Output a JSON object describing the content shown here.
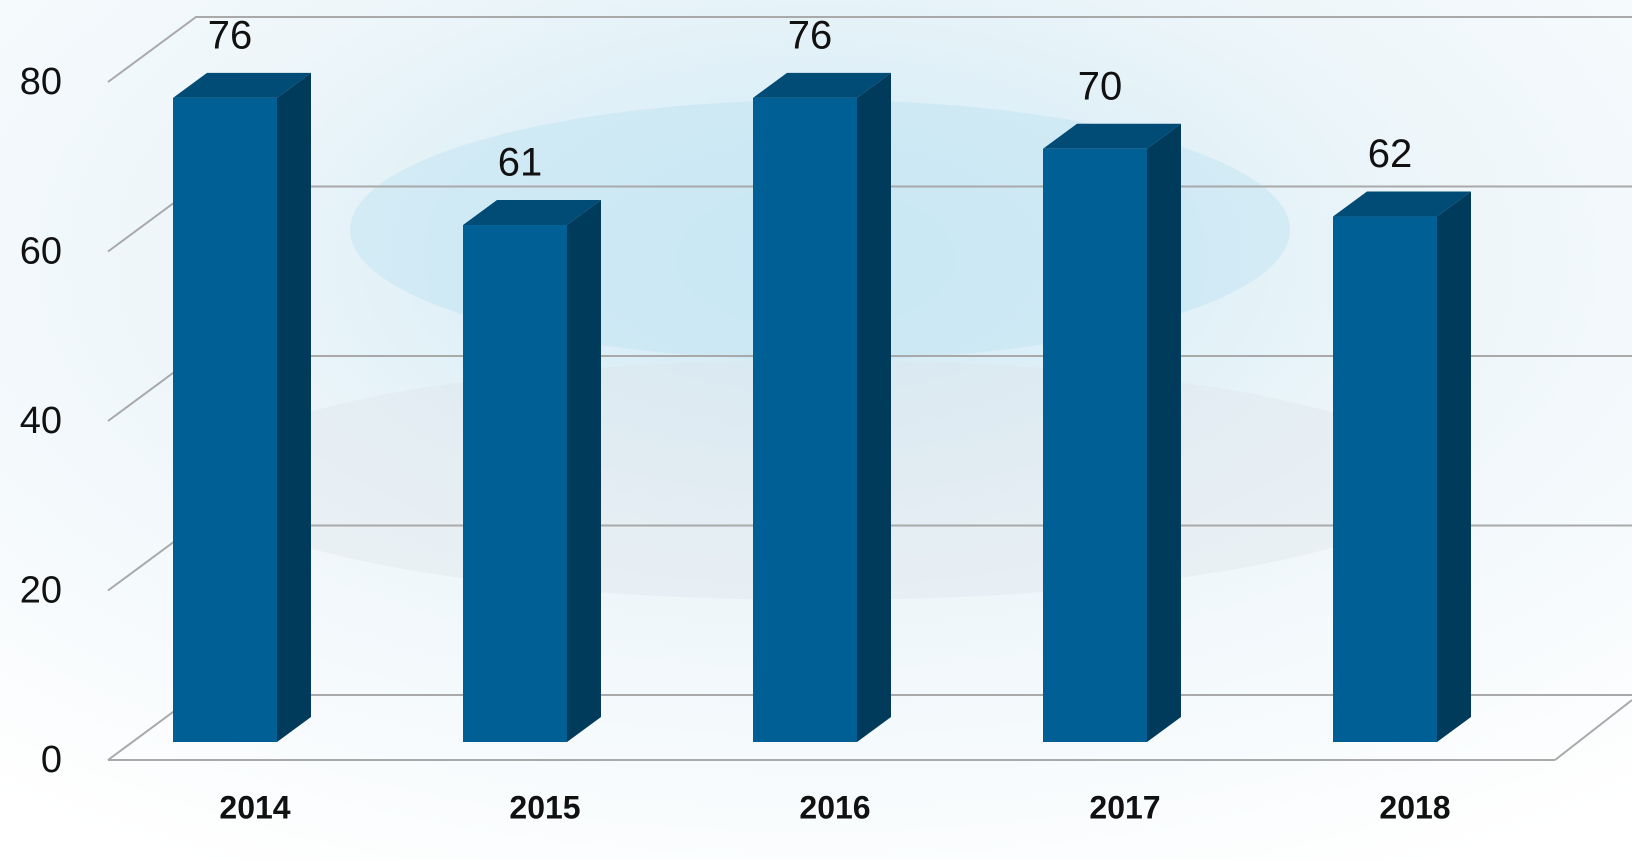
{
  "chart_data": {
    "type": "bar3d",
    "categories": [
      "2014",
      "2015",
      "2016",
      "2017",
      "2018"
    ],
    "values": [
      76,
      61,
      76,
      70,
      62
    ],
    "color": "#005f94",
    "ylim": [
      0,
      80
    ],
    "yticks": [
      0,
      20,
      40,
      60,
      80
    ],
    "grid": true
  }
}
